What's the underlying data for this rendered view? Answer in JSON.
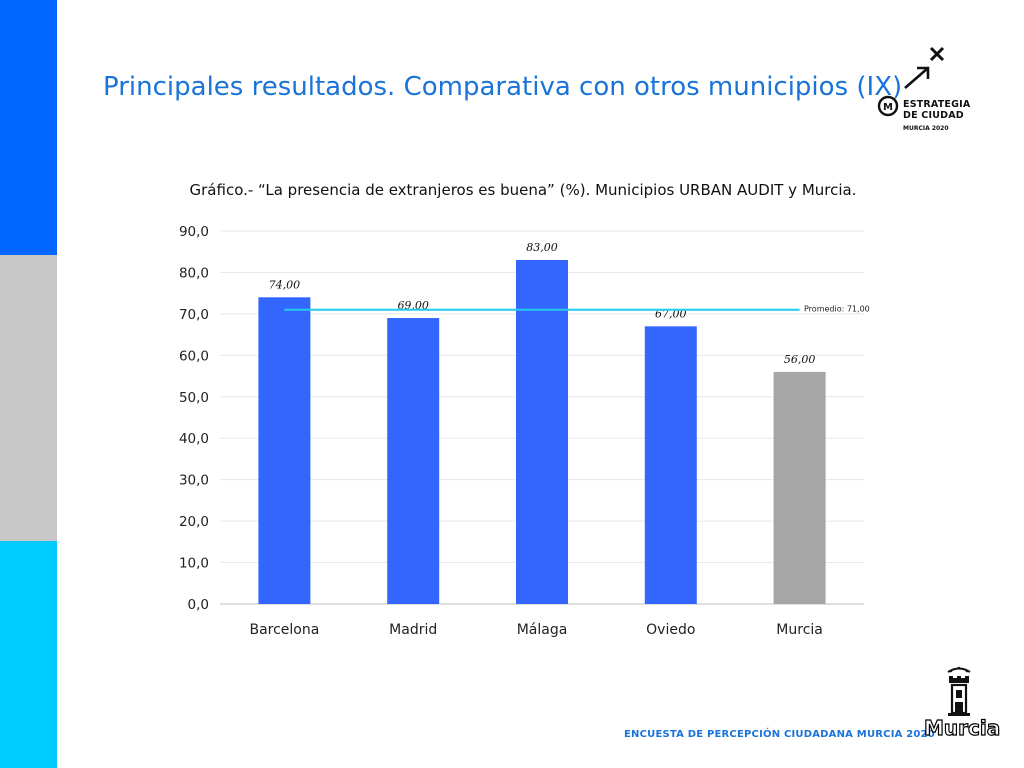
{
  "colors": {
    "stripe_top": "#0066ff",
    "stripe_mid": "#c8c8c8",
    "stripe_bottom": "#00ccff",
    "bar_primary": "#3366ff",
    "bar_highlight": "#a6a6a6",
    "average_line": "#22ccee",
    "gridline": "#e8e8e8"
  },
  "slide": {
    "title": "Principales resultados. Comparativa con otros municipios (IX)"
  },
  "brand": {
    "line1": "ESTRATEGIA",
    "line2": "DE CIUDAD",
    "line3": "MURCIA 2020",
    "badge_letter": "M"
  },
  "chart_caption": "Gráfico.-  “La presencia de extranjeros es buena” (%). Municipios URBAN AUDIT y Murcia.",
  "chart_data": {
    "type": "bar",
    "title": "Gráfico.-  “La presencia de extranjeros es buena” (%). Municipios URBAN AUDIT y Murcia.",
    "categories": [
      "Barcelona",
      "Madrid",
      "Málaga",
      "Oviedo",
      "Murcia"
    ],
    "values": [
      74,
      69,
      83,
      67,
      56
    ],
    "value_labels": [
      "74,00",
      "69,00",
      "83,00",
      "67,00",
      "56,00"
    ],
    "highlight_index": 4,
    "ylim": [
      0,
      90
    ],
    "y_ticks": [
      0,
      10,
      20,
      30,
      40,
      50,
      60,
      70,
      80,
      90
    ],
    "y_tick_labels": [
      "0,0",
      "10,0",
      "20,0",
      "30,0",
      "40,0",
      "50,0",
      "60,0",
      "70,0",
      "80,0",
      "90,0"
    ],
    "average": {
      "value": 71,
      "label": "Promedio: 71,00"
    },
    "grid": true
  },
  "footer": {
    "text": "ENCUESTA DE PERCEPCIÓN CIUDADANA MURCIA 2020",
    "logo_text": "Murcia"
  }
}
